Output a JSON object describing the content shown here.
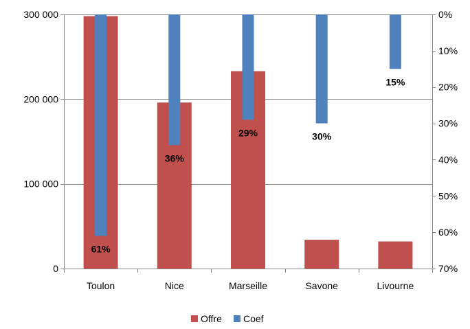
{
  "chart_data": {
    "type": "bar",
    "categories": [
      "Toulon",
      "Nice",
      "Marseille",
      "Savone",
      "Livourne"
    ],
    "series": [
      {
        "name": "Offre",
        "axis": "left",
        "color": "#C0504D",
        "values": [
          298000,
          196000,
          233000,
          34000,
          32000
        ]
      },
      {
        "name": "Coef",
        "axis": "right",
        "color": "#4F81BD",
        "values": [
          0.61,
          0.36,
          0.29,
          0.3,
          0.15
        ],
        "data_labels": [
          "61%",
          "36%",
          "29%",
          "30%",
          "15%"
        ]
      }
    ],
    "left_axis": {
      "ylim": [
        0,
        300000
      ],
      "ticks": [
        {
          "value": 0,
          "label": "0"
        },
        {
          "value": 100000,
          "label": "100 000"
        },
        {
          "value": 200000,
          "label": "200 000"
        },
        {
          "value": 300000,
          "label": "300 000"
        }
      ]
    },
    "right_axis": {
      "ylim": [
        0,
        0.7
      ],
      "reversed": true,
      "ticks": [
        {
          "value": 0.0,
          "label": "0%"
        },
        {
          "value": 0.1,
          "label": "10%"
        },
        {
          "value": 0.2,
          "label": "20%"
        },
        {
          "value": 0.3,
          "label": "30%"
        },
        {
          "value": 0.4,
          "label": "40%"
        },
        {
          "value": 0.5,
          "label": "50%"
        },
        {
          "value": 0.6,
          "label": "60%"
        },
        {
          "value": 0.7,
          "label": "70%"
        }
      ]
    },
    "title": "",
    "xlabel": "",
    "ylabel": "",
    "grid": true,
    "legend_position": "bottom"
  }
}
